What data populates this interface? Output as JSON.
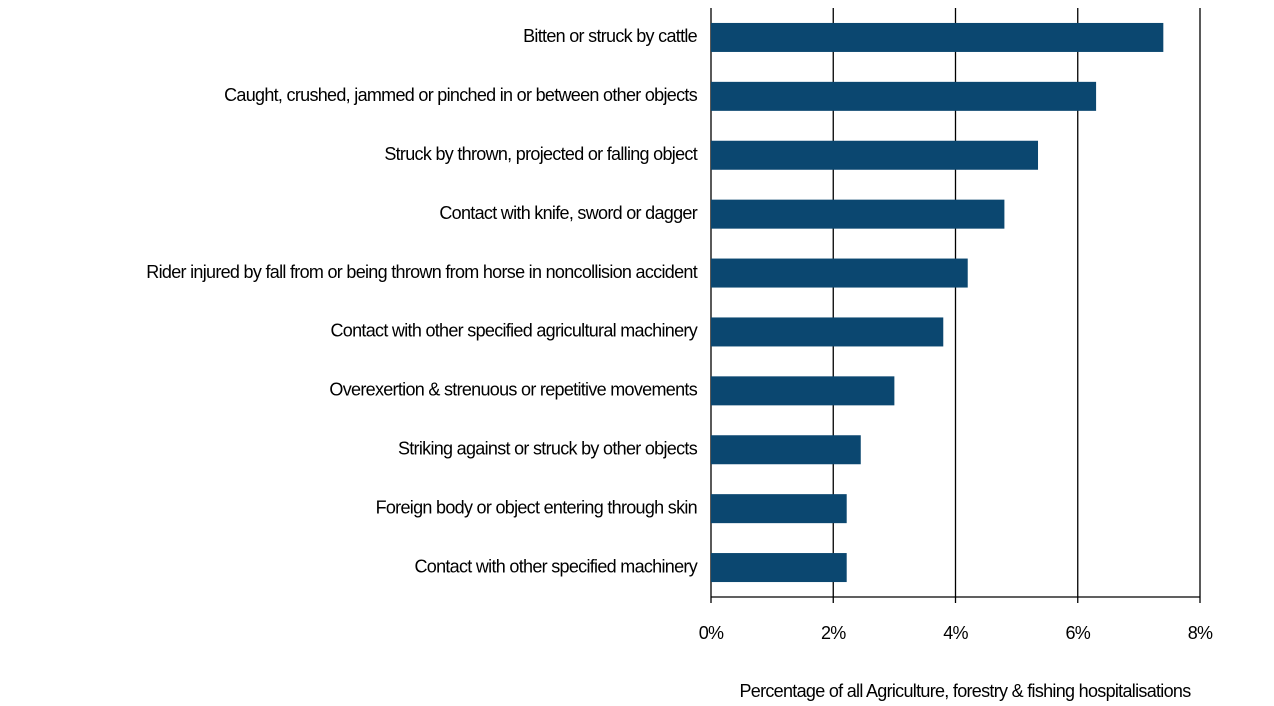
{
  "chart_data": {
    "type": "bar",
    "orientation": "horizontal",
    "xlabel": "Percentage of all Agriculture, forestry & fishing hospitalisations",
    "categories": [
      "Bitten or struck by cattle",
      "Caught, crushed, jammed or pinched in or between other objects",
      "Struck by thrown, projected or falling object",
      "Contact with knife, sword or dagger",
      "Rider injured by fall from or being thrown from horse in noncollision accident",
      "Contact with other specified agricultural machinery",
      "Overexertion & strenuous or repetitive movements",
      "Striking against or struck by other objects",
      "Foreign body or object entering through skin",
      "Contact with other specified machinery"
    ],
    "values": [
      7.4,
      6.3,
      5.35,
      4.8,
      4.2,
      3.8,
      3.0,
      2.45,
      2.22,
      2.22
    ],
    "color": "#0b4770",
    "xlim": [
      0,
      8
    ],
    "xticks": [
      {
        "value": 0,
        "label": "0%"
      },
      {
        "value": 2,
        "label": "2%"
      },
      {
        "value": 4,
        "label": "4%"
      },
      {
        "value": 6,
        "label": "6%"
      },
      {
        "value": 8,
        "label": "8%"
      }
    ],
    "grid": true
  }
}
